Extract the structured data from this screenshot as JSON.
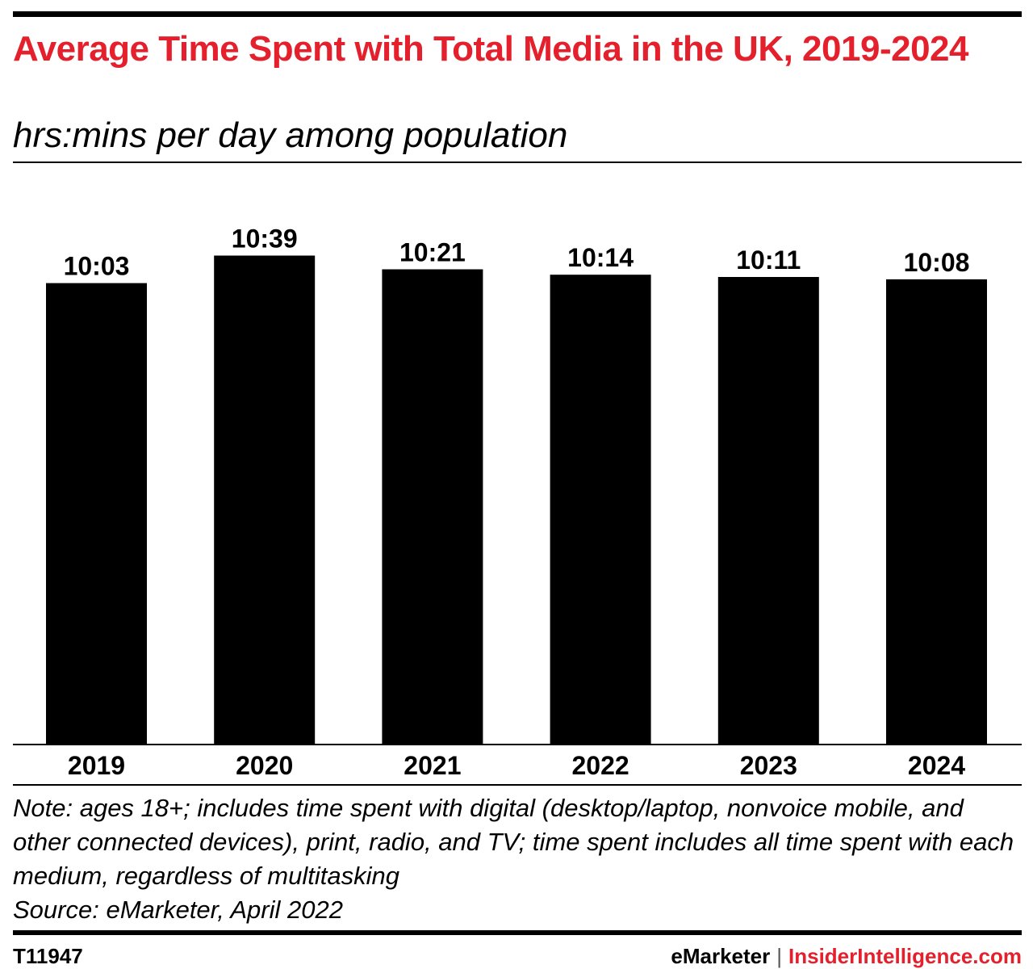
{
  "header": {
    "title": "Average Time Spent with Total Media in the UK, 2019-2024",
    "subtitle": "hrs:mins per day among population"
  },
  "colors": {
    "title": "#e4202d",
    "bars": "#000000",
    "brand_accent": "#e4202d"
  },
  "chart_data": {
    "type": "bar",
    "title": "Average Time Spent with Total Media in the UK, 2019-2024",
    "subtitle": "hrs:mins per day among population",
    "categories": [
      "2019",
      "2020",
      "2021",
      "2022",
      "2023",
      "2024"
    ],
    "values": [
      603,
      639,
      621,
      614,
      611,
      608
    ],
    "value_unit": "minutes per day",
    "data_labels": [
      "10:03",
      "10:39",
      "10:21",
      "10:14",
      "10:11",
      "10:08"
    ],
    "ylim": [
      0,
      660
    ],
    "grid": false,
    "legend": "none"
  },
  "footnote": {
    "note": "Note: ages 18+; includes time spent with digital (desktop/laptop, nonvoice mobile, and other connected devices), print, radio, and TV; time spent includes all time spent with each medium, regardless of multitasking",
    "source": "Source: eMarketer, April 2022"
  },
  "footer": {
    "chart_id": "T11947",
    "brand_primary": "eMarketer",
    "separator": "|",
    "brand_secondary": "InsiderIntelligence.com"
  }
}
